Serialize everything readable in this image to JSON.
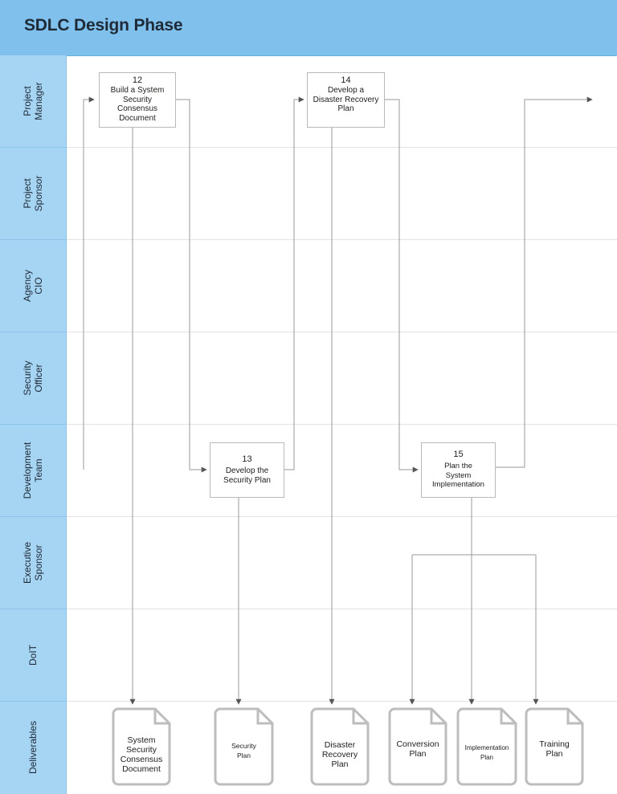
{
  "title": "SDLC Design Phase",
  "lanes": [
    {
      "label": "Project\nManager"
    },
    {
      "label": "Project\nSponsor"
    },
    {
      "label": "Agency\nCIO"
    },
    {
      "label": "Security\nOfficer"
    },
    {
      "label": "Development\nTeam"
    },
    {
      "label": "Executive\nSponsor"
    },
    {
      "label": "DoIT"
    },
    {
      "label": "Deliverables"
    }
  ],
  "tasks": [
    {
      "number": "12",
      "label": "Build a System\nSecurity\nConsensus\nDocument",
      "lane": "Project Manager"
    },
    {
      "number": "13",
      "label": "Develop the\nSecurity Plan",
      "lane": "Development Team"
    },
    {
      "number": "14",
      "label": "Develop a\nDisaster Recovery\nPlan",
      "lane": "Project Manager"
    },
    {
      "number": "15",
      "label": "Plan the\nSystem\nImplementation",
      "lane": "Development Team"
    }
  ],
  "deliverables": [
    {
      "label": "System\nSecurity\nConsensus\nDocument",
      "from_task": "12"
    },
    {
      "label": "Security\nPlan",
      "from_task": "13"
    },
    {
      "label": "Disaster\nRecovery\nPlan",
      "from_task": "14"
    },
    {
      "label": "Conversion\nPlan",
      "from_task": "15"
    },
    {
      "label": "Implementation\nPlan",
      "from_task": "15"
    },
    {
      "label": "Training\nPlan",
      "from_task": "15"
    }
  ],
  "colors": {
    "header": "#7fc0ec",
    "lane_labels": "#a6d4f3",
    "connector": "#9a9a9a",
    "document_outline": "#bdbdbd"
  }
}
